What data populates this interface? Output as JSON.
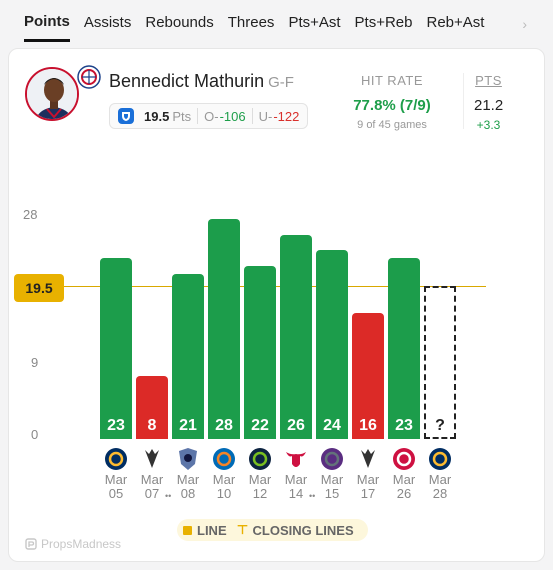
{
  "tabs": [
    "Points",
    "Assists",
    "Rebounds",
    "Threes",
    "Pts+Ast",
    "Pts+Reb",
    "Reb+Ast"
  ],
  "active_tab": 0,
  "player": {
    "name": "Bennedict Mathurin",
    "position": "G-F",
    "team_logo_icon": "clippers-logo-icon"
  },
  "prop": {
    "line": "19.5",
    "line_label": "Pts",
    "over_label": "O",
    "over_odds": "-106",
    "under_label": "U",
    "under_odds": "-122"
  },
  "hit_rate": {
    "title": "HIT RATE",
    "value": "77.8% (7/9)",
    "sub": "9 of 45 games"
  },
  "pts": {
    "title": "PTS",
    "value": "21.2",
    "diff": "+3.3"
  },
  "chart": {
    "y_ticks": [
      "28",
      "9",
      "0"
    ],
    "line_value": "19.5"
  },
  "chart_data": {
    "type": "bar",
    "categories": [
      "Mar 05",
      "Mar 07",
      "Mar 08",
      "Mar 10",
      "Mar 12",
      "Mar 14",
      "Mar 15",
      "Mar 17",
      "Mar 26",
      "Mar 28"
    ],
    "values": [
      23,
      8,
      21,
      28,
      22,
      26,
      24,
      16,
      23,
      null
    ],
    "labels": [
      "23",
      "8",
      "21",
      "28",
      "22",
      "26",
      "24",
      "16",
      "23",
      "?"
    ],
    "opponents": [
      "IND",
      "SAS",
      "MEM",
      "NYK",
      "MIN",
      "CHI",
      "SAC",
      "SAS",
      "TOR",
      "IND"
    ],
    "line": 19.5,
    "ylim": [
      0,
      28
    ],
    "y_ticks": [
      0,
      9,
      19.5,
      28
    ],
    "colors": {
      "over": "#1c9d4b",
      "under": "#dc2a27",
      "line": "#e8b100"
    }
  },
  "legend": {
    "line_label": "LINE",
    "closing_label": "CLOSING LINES"
  },
  "brand": "PropsMadness"
}
